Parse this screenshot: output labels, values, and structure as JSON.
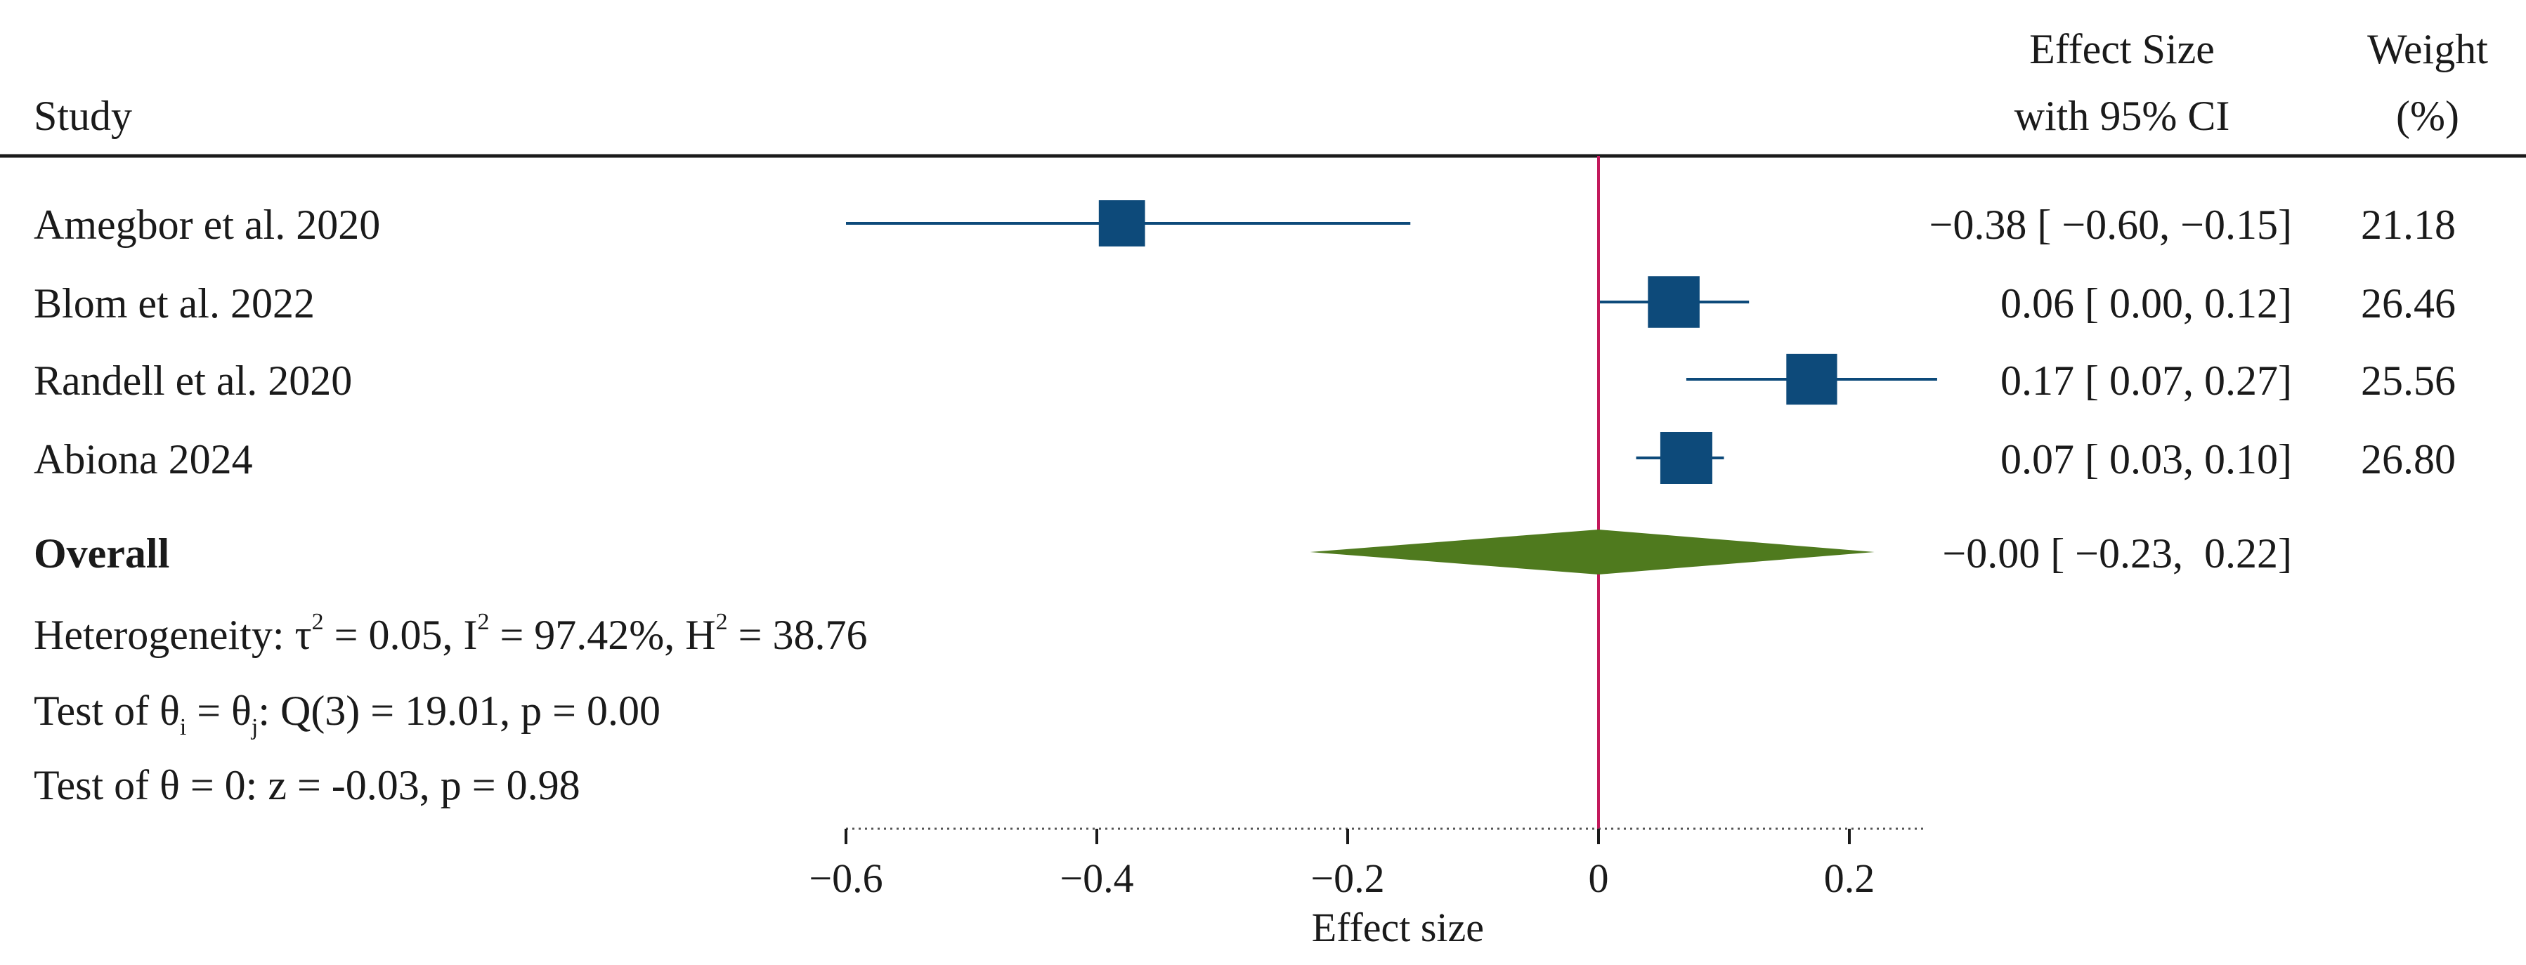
{
  "headers": {
    "study": "Study",
    "effect_line1": "Effect Size",
    "effect_line2": "with 95% CI",
    "weight_line1": "Weight",
    "weight_line2": "(%)"
  },
  "overall": {
    "label": "Overall",
    "ci_text": "−0.00 [ −0.23,  0.22]"
  },
  "heterogeneity": {
    "lead": "Heterogeneity: τ",
    "tau_sup": "2",
    "tau_val": " = 0.05, I",
    "i_sup": "2",
    "i_val": " = 97.42%, H",
    "h_sup": "2",
    "h_val": " = 38.76"
  },
  "test_equal": {
    "lead": "Test of θ",
    "sub_i": "i",
    "mid": " = θ",
    "sub_j": "j",
    "tail": ": Q(3) = 19.01, p = 0.00"
  },
  "test_zero": "Test of θ = 0: z = -0.03, p = 0.98",
  "colors": {
    "square": "#0d4a7a",
    "ci_line": "#0d4a7a",
    "diamond": "#4f7a1e",
    "null_line": "#c2185b",
    "rule": "#1a1a1a"
  },
  "chart_data": {
    "type": "forest",
    "title": "",
    "xlabel": "Effect size",
    "xlim": [
      -0.6,
      0.26
    ],
    "null_value": 0,
    "ticks": [
      {
        "value": -0.6,
        "label": "−0.6"
      },
      {
        "value": -0.4,
        "label": "−0.4"
      },
      {
        "value": -0.2,
        "label": "−0.2"
      },
      {
        "value": 0,
        "label": "0"
      },
      {
        "value": 0.2,
        "label": "0.2"
      }
    ],
    "studies": [
      {
        "name": "Amegbor  et al. 2020",
        "es": -0.38,
        "lo": -0.6,
        "hi": -0.15,
        "weight": 21.18,
        "ci_text": "−0.38 [ −0.60, −0.15]",
        "weight_text": "21.18"
      },
      {
        "name": "Blom et al. 2022",
        "es": 0.06,
        "lo": 0.0,
        "hi": 0.12,
        "weight": 26.46,
        "ci_text": "0.06 [  0.00,  0.12]",
        "weight_text": "26.46"
      },
      {
        "name": "Randell et al. 2020",
        "es": 0.17,
        "lo": 0.07,
        "hi": 0.27,
        "weight": 25.56,
        "ci_text": "0.17 [  0.07,  0.27]",
        "weight_text": "25.56"
      },
      {
        "name": "Abiona 2024",
        "es": 0.07,
        "lo": 0.03,
        "hi": 0.1,
        "weight": 26.8,
        "ci_text": "0.07 [  0.03,  0.10]",
        "weight_text": "26.80"
      }
    ],
    "overall": {
      "es": -0.0,
      "lo": -0.23,
      "hi": 0.22
    }
  }
}
